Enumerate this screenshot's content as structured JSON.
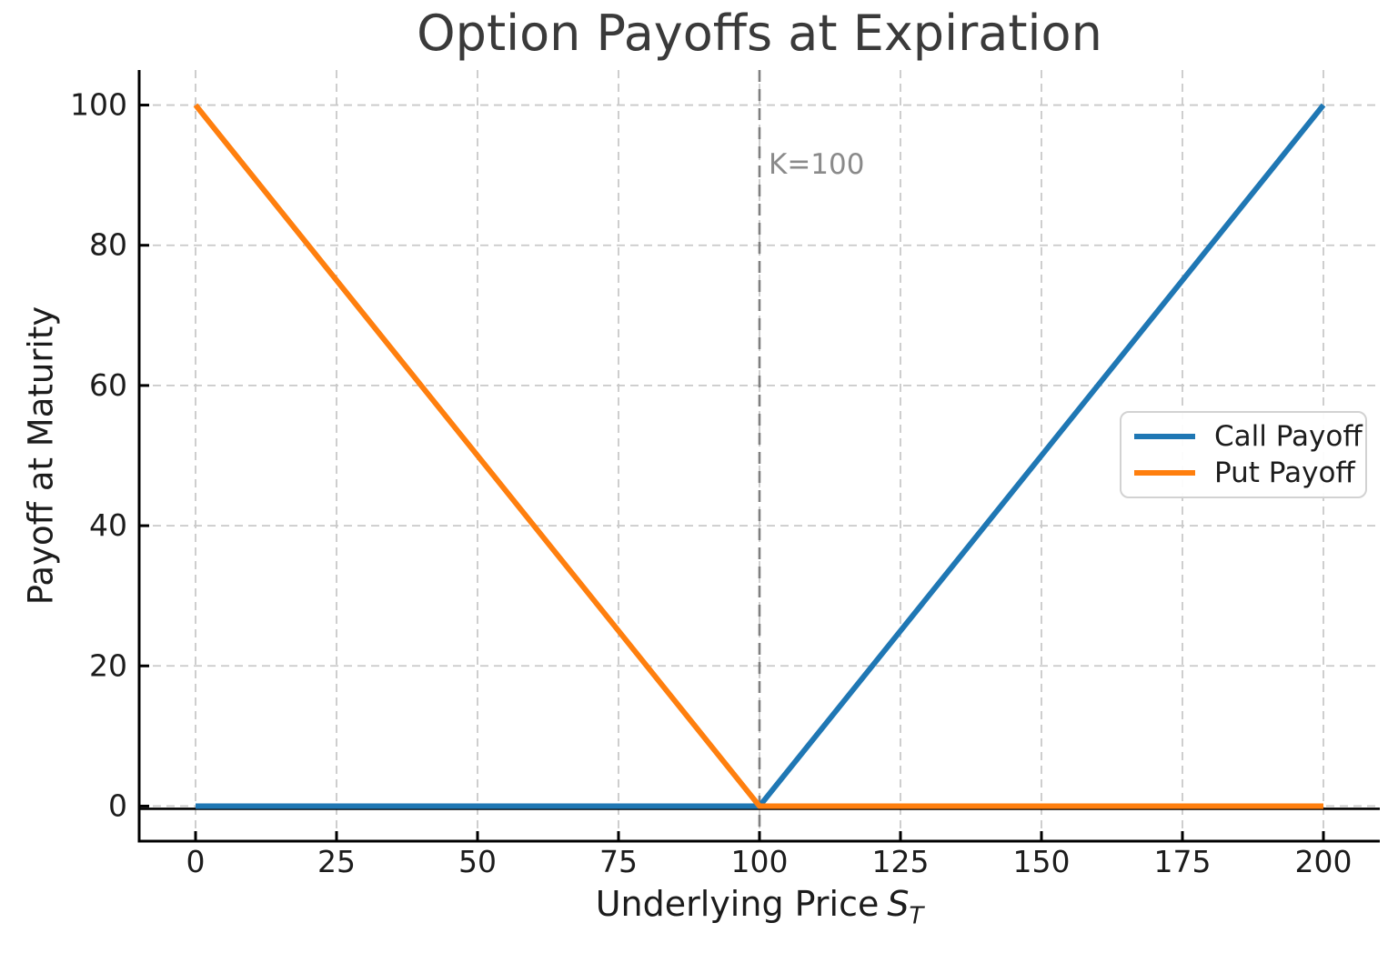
{
  "chart_data": {
    "type": "line",
    "title": "Option Payoffs at Expiration",
    "xlabel": {
      "text": "Underlying Price",
      "var": "S",
      "sub": "T"
    },
    "ylabel": "Payoff at Maturity",
    "xlim": [
      -10,
      210
    ],
    "ylim": [
      -5,
      105
    ],
    "xticks": [
      0,
      25,
      50,
      75,
      100,
      125,
      150,
      175,
      200
    ],
    "yticks": [
      0,
      20,
      40,
      60,
      80,
      100
    ],
    "grid": true,
    "grid_color": "#c9c9c9",
    "axis_color": "#000000",
    "tick_direction": "in",
    "legend_position": "center right",
    "strike_line": {
      "x": 100,
      "color": "#7f7f7f",
      "style": "dashed"
    },
    "zero_line": {
      "y": 0,
      "color": "#000000"
    },
    "annotation": {
      "label": "K=100",
      "x": 100,
      "y": 90,
      "color": "#8a8a8a"
    },
    "legend": {
      "entries": [
        {
          "label": "Call Payoff",
          "color": "#1f77b4"
        },
        {
          "label": "Put Payoff",
          "color": "#ff7f0e"
        }
      ]
    },
    "series": [
      {
        "name": "Call Payoff",
        "color": "#1f77b4",
        "x": [
          0,
          100,
          200
        ],
        "y": [
          0,
          0,
          100
        ]
      },
      {
        "name": "Put Payoff",
        "color": "#ff7f0e",
        "x": [
          0,
          100,
          200
        ],
        "y": [
          100,
          0,
          0
        ]
      }
    ]
  }
}
